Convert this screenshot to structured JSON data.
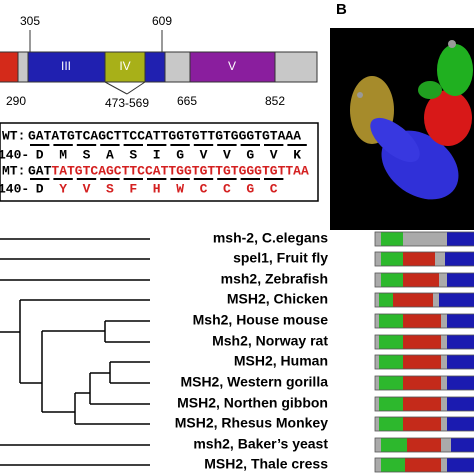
{
  "domain_map": {
    "labels_top": [
      "305",
      "609"
    ],
    "domains": [
      "III",
      "IV",
      "V"
    ],
    "labels_bottom": [
      "290",
      "473-569",
      "665",
      "852"
    ]
  },
  "panel_b": "B",
  "wt": {
    "label": "WT:",
    "sequence": "GATATGTCAGCTTCCATTGGTGTTGTGGGTGTAAA",
    "position": "140-",
    "residues": [
      "D",
      "M",
      "S",
      "A",
      "S",
      "I",
      "G",
      "V",
      "V",
      "G",
      "V",
      "K"
    ]
  },
  "mt": {
    "label": "MT:",
    "sequence_prefix": "GAT",
    "sequence_mutant": "TATGTCAGCTTCCATTGGTGTTGTGGGTGTTAA",
    "position": "140-",
    "residues_prefix": [
      "D"
    ],
    "residues_mutant": [
      "Y",
      "V",
      "S",
      "F",
      "H",
      "W",
      "C",
      "C",
      "G",
      "C"
    ]
  },
  "species": [
    "msh-2, C.elegans",
    "spel1, Fruit fly",
    "msh2, Zebrafish",
    "MSH2, Chicken",
    "Msh2, House mouse",
    "Msh2, Norway rat",
    "MSH2, Human",
    "MSH2, Western gorilla",
    "MSH2, Northen gibbon",
    "MSH2, Rhesus Monkey",
    "msh2, Baker’s yeast",
    "MSH2, Thale cress"
  ]
}
